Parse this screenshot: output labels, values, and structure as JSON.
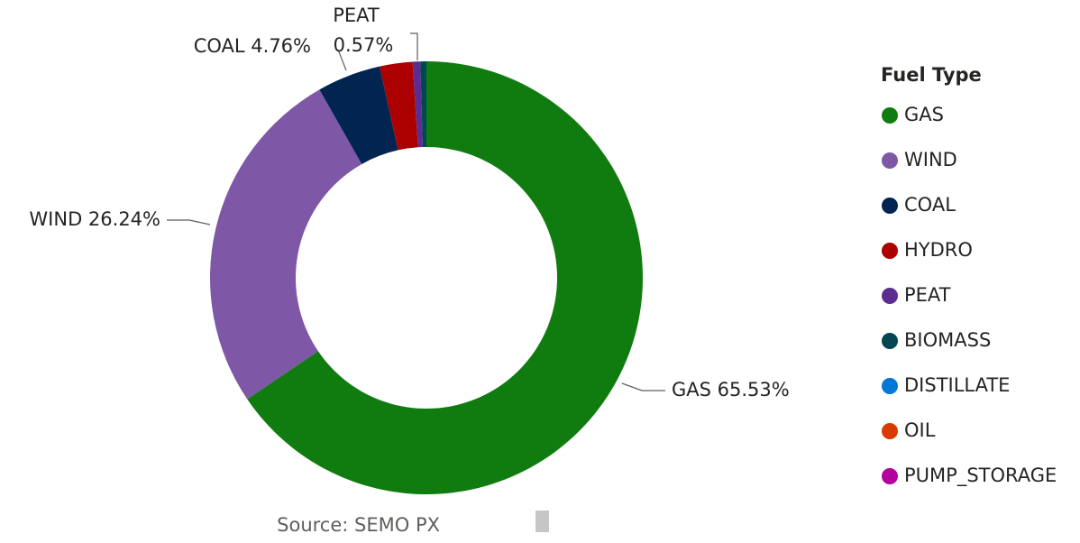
{
  "chart_data": {
    "type": "donut",
    "legend_title": "Fuel Type",
    "source": "Source: SEMO PX",
    "legend_position": "right",
    "categories": [
      "GAS",
      "WIND",
      "COAL",
      "HYDRO",
      "PEAT",
      "BIOMASS",
      "DISTILLATE",
      "OIL",
      "PUMP_STORAGE"
    ],
    "values": [
      65.53,
      26.24,
      4.76,
      2.45,
      0.57,
      0.45,
      0,
      0,
      0
    ],
    "value_labels": [
      "GAS 65.53%",
      "WIND 26.24%",
      "COAL 4.76%",
      null,
      "PEAT 0.57%",
      null,
      null,
      null,
      null
    ],
    "colors": [
      "#107c10",
      "#7e57a7",
      "#012451",
      "#ac0000",
      "#5c2d91",
      "#004753",
      "#0078d4",
      "#d83b01",
      "#b4009e"
    ]
  }
}
